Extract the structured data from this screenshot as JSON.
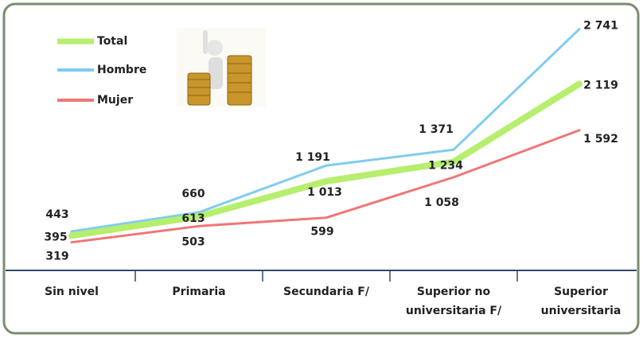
{
  "chart_data": {
    "type": "line",
    "categories": [
      "Sin nivel",
      "Primaria",
      "Secundaria F/",
      "Superior no universitaria F/",
      "Superior universitaria"
    ],
    "series": [
      {
        "name": "Total",
        "color": "#b6ee6e",
        "values": [
          395,
          613,
          1013,
          1234,
          2119
        ],
        "value_labels": [
          "395",
          "613",
          "1 013",
          "1 234",
          "2 119"
        ]
      },
      {
        "name": "Hombre",
        "color": "#80ccef",
        "values": [
          443,
          660,
          1191,
          1371,
          2741
        ],
        "value_labels": [
          "443",
          "660",
          "1 191",
          "1 371",
          "2 741"
        ]
      },
      {
        "name": "Mujer",
        "color": "#f07676",
        "values": [
          319,
          503,
          599,
          1058,
          1592
        ],
        "value_labels": [
          "319",
          "503",
          "599",
          "1 058",
          "1 592"
        ]
      }
    ],
    "legend": "top-left"
  }
}
